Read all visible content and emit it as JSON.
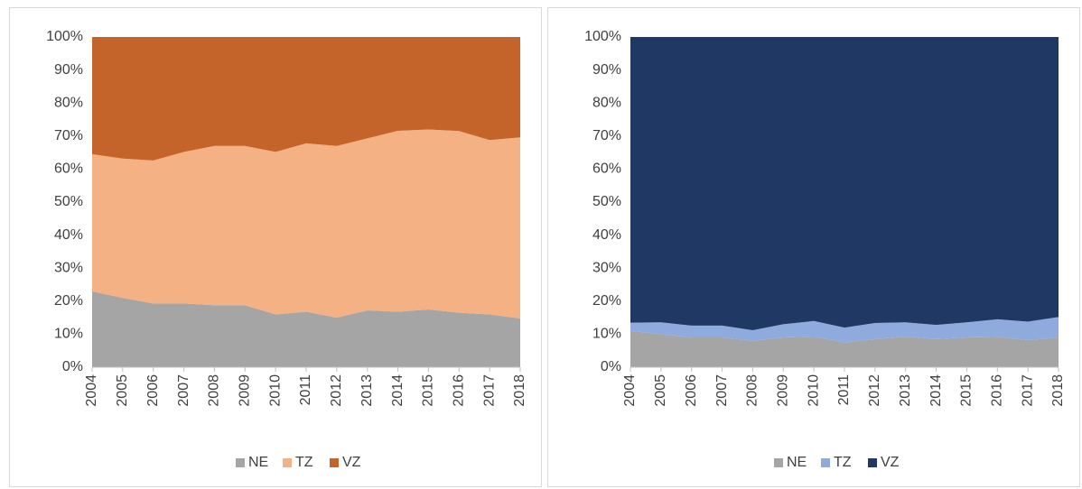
{
  "chart_data": [
    {
      "type": "stacked_area_100",
      "categories": [
        "2004",
        "2005",
        "2006",
        "2007",
        "2008",
        "2009",
        "2010",
        "2011",
        "2012",
        "2013",
        "2014",
        "2015",
        "2016",
        "2017",
        "2018"
      ],
      "series": [
        {
          "name": "NE",
          "color": "#a5a5a5",
          "values": [
            23,
            21,
            19.3,
            19.3,
            18.8,
            18.8,
            16,
            16.8,
            15,
            17.2,
            16.8,
            17.5,
            16.5,
            16,
            14.8
          ]
        },
        {
          "name": "TZ",
          "color": "#f4b183",
          "values": [
            41.5,
            42.2,
            43.3,
            45.9,
            48.2,
            48.2,
            49.2,
            51,
            52,
            52.1,
            54.8,
            54.5,
            55,
            52.8,
            54.8
          ]
        },
        {
          "name": "VZ",
          "color": "#c5642a",
          "values": [
            35.5,
            36.8,
            37.4,
            34.8,
            33,
            33,
            34.8,
            32.2,
            33,
            30.7,
            28.4,
            28,
            28.5,
            31.2,
            30.4
          ]
        }
      ],
      "ylim": [
        0,
        100
      ],
      "yticks": [
        {
          "value": 0,
          "label": "0%"
        },
        {
          "value": 10,
          "label": "10%"
        },
        {
          "value": 20,
          "label": "20%"
        },
        {
          "value": 30,
          "label": "30%"
        },
        {
          "value": 40,
          "label": "40%"
        },
        {
          "value": 50,
          "label": "50%"
        },
        {
          "value": 60,
          "label": "60%"
        },
        {
          "value": 70,
          "label": "70%"
        },
        {
          "value": 80,
          "label": "80%"
        },
        {
          "value": 90,
          "label": "90%"
        },
        {
          "value": 100,
          "label": "100%"
        }
      ],
      "legend": "bottom"
    },
    {
      "type": "stacked_area_100",
      "categories": [
        "2004",
        "2005",
        "2006",
        "2007",
        "2008",
        "2009",
        "2010",
        "2011",
        "2012",
        "2013",
        "2014",
        "2015",
        "2016",
        "2017",
        "2018"
      ],
      "series": [
        {
          "name": "NE",
          "color": "#a5a5a5",
          "values": [
            11,
            10,
            9,
            9,
            8,
            9,
            9.3,
            7.5,
            8.5,
            9.3,
            8.5,
            9,
            9.2,
            8.2,
            9
          ]
        },
        {
          "name": "TZ",
          "color": "#8faadc",
          "values": [
            2.5,
            3.6,
            3.6,
            3.6,
            3.2,
            4,
            4.7,
            4.5,
            4.9,
            4.3,
            4.3,
            4.6,
            5.3,
            5.6,
            6.2
          ]
        },
        {
          "name": "VZ",
          "color": "#203864",
          "values": [
            86.5,
            86.4,
            87.4,
            87.4,
            88.8,
            87,
            86,
            88,
            86.6,
            86.4,
            87.2,
            86.4,
            85.5,
            86.2,
            84.8
          ]
        }
      ],
      "ylim": [
        0,
        100
      ],
      "yticks": [
        {
          "value": 0,
          "label": "0%"
        },
        {
          "value": 10,
          "label": "10%"
        },
        {
          "value": 20,
          "label": "20%"
        },
        {
          "value": 30,
          "label": "30%"
        },
        {
          "value": 40,
          "label": "40%"
        },
        {
          "value": 50,
          "label": "50%"
        },
        {
          "value": 60,
          "label": "60%"
        },
        {
          "value": 70,
          "label": "70%"
        },
        {
          "value": 80,
          "label": "80%"
        },
        {
          "value": 90,
          "label": "90%"
        },
        {
          "value": 100,
          "label": "100%"
        }
      ],
      "legend": "bottom"
    }
  ]
}
